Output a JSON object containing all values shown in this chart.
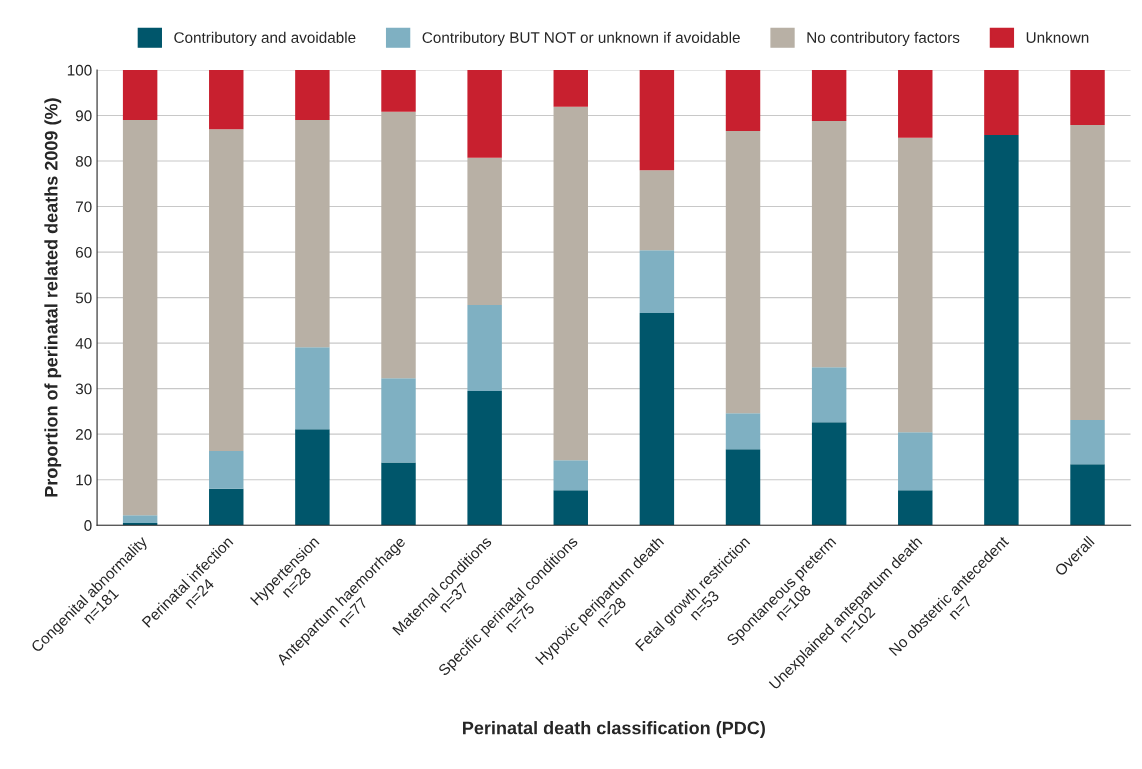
{
  "chart_data": {
    "type": "bar",
    "stacked": true,
    "xlabel": "Perinatal death classification (PDC)",
    "ylabel": "Proportion of perinatal related deaths 2009 (%)",
    "categories": [
      "Congenital abnormality\nn=181",
      "Perinatal infection\nn=24",
      "Hypertension\nn=28",
      "Antepartum haemorrhage\nn=77",
      "Maternal conditions\nn=37",
      "Specific perinatal conditions\nn=75",
      "Hypoxic peripartum death\nn=28",
      "Fetal growth restriction\nn=53",
      "Spontaneous preterm\nn=108",
      "Unexplained antepartum death\nn=102",
      "No obstetric antecedent\nn=7",
      "Overall"
    ],
    "series": [
      {
        "name": "Contributory and avoidable",
        "color": "#00566b",
        "values": [
          0.5,
          8,
          21.1,
          13.8,
          29.5,
          7.7,
          46.6,
          16.7,
          22.6,
          7.7,
          85.7,
          13.4
        ]
      },
      {
        "name": "Contributory BUT NOT or unknown if avoidable",
        "color": "#7fb0c2",
        "values": [
          1.7,
          8.3,
          18,
          18.5,
          18.9,
          6.6,
          13.8,
          7.9,
          12.1,
          12.7,
          0,
          9.7
        ]
      },
      {
        "name": "No contributory factors",
        "color": "#b8b0a5",
        "values": [
          86.8,
          70.7,
          49.9,
          58.5,
          32.3,
          77.6,
          17.6,
          62,
          54.1,
          64.7,
          0,
          64.8
        ]
      },
      {
        "name": "Unknown",
        "color": "#c8202f",
        "values": [
          11,
          13,
          11,
          9.2,
          19.3,
          8.1,
          22,
          13.4,
          11.2,
          14.9,
          14.3,
          12.1
        ]
      }
    ],
    "ylim": [
      0,
      100
    ],
    "yticks": [
      0,
      10,
      20,
      30,
      40,
      50,
      60,
      70,
      80,
      90,
      100
    ],
    "grid": "y",
    "legend": "top"
  }
}
